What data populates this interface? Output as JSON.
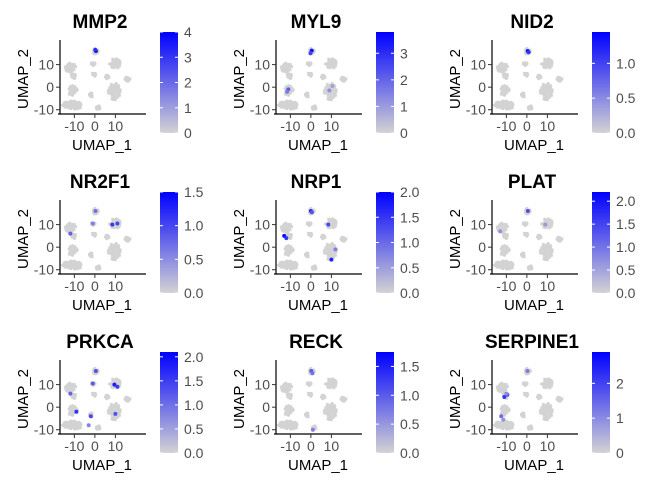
{
  "chart_data": [
    {
      "type": "scatter",
      "title": "MMP2",
      "xlabel": "UMAP_1",
      "ylabel": "UMAP_2",
      "xlim": [
        -17,
        22
      ],
      "ylim": [
        -11,
        20
      ],
      "xticks": [
        -10,
        0,
        10
      ],
      "yticks": [
        -10,
        0,
        10
      ],
      "xtick_labels": [
        "-10",
        "0",
        "10"
      ],
      "ytick_labels": [
        "-10",
        "0",
        "10"
      ],
      "legend": {
        "min": 0,
        "max": 4,
        "ticks": [
          0,
          1,
          2,
          3,
          4
        ],
        "tick_labels": [
          "0",
          "1",
          "2",
          "3",
          "4"
        ]
      },
      "low_color": "#d3d3d3",
      "high_color": "#0000ff",
      "highlights": [
        {
          "x": 0.5,
          "y": 16,
          "value": 3.8
        },
        {
          "x": 0.2,
          "y": 16.5,
          "value": 3.2
        }
      ]
    },
    {
      "type": "scatter",
      "title": "MYL9",
      "xlabel": "UMAP_1",
      "ylabel": "UMAP_2",
      "xlim": [
        -17,
        22
      ],
      "ylim": [
        -11,
        20
      ],
      "xticks": [
        -10,
        0,
        10
      ],
      "yticks": [
        -10,
        0,
        10
      ],
      "xtick_labels": [
        "-10",
        "0",
        "10"
      ],
      "ytick_labels": [
        "-10",
        "0",
        "10"
      ],
      "legend": {
        "min": 0,
        "max": 3.8,
        "ticks": [
          0,
          1,
          2,
          3
        ],
        "tick_labels": [
          "0",
          "1",
          "2",
          "3"
        ]
      },
      "low_color": "#d3d3d3",
      "high_color": "#0000ff",
      "highlights": [
        {
          "x": 0.4,
          "y": 16.2,
          "value": 3.5
        },
        {
          "x": -0.2,
          "y": 15,
          "value": 2.6
        },
        {
          "x": -11,
          "y": -1,
          "value": 2.2
        },
        {
          "x": -11.6,
          "y": -2,
          "value": 1.6
        },
        {
          "x": 9,
          "y": -1.5,
          "value": 1.2
        },
        {
          "x": 10.5,
          "y": 0.5,
          "value": 0.9
        }
      ]
    },
    {
      "type": "scatter",
      "title": "NID2",
      "xlabel": "UMAP_1",
      "ylabel": "UMAP_2",
      "xlim": [
        -17,
        22
      ],
      "ylim": [
        -11,
        20
      ],
      "xticks": [
        -10,
        0,
        10
      ],
      "yticks": [
        -10,
        0,
        10
      ],
      "xtick_labels": [
        "-10",
        "0",
        "10"
      ],
      "ytick_labels": [
        "-10",
        "0",
        "10"
      ],
      "legend": {
        "min": 0,
        "max": 1.45,
        "ticks": [
          0,
          0.5,
          1
        ],
        "tick_labels": [
          "0.0",
          "0.5",
          "1.0"
        ]
      },
      "low_color": "#d3d3d3",
      "high_color": "#0000ff",
      "highlights": [
        {
          "x": 0.4,
          "y": 16,
          "value": 1.3
        },
        {
          "x": 0.9,
          "y": 15.5,
          "value": 1.1
        }
      ]
    },
    {
      "type": "scatter",
      "title": "NR2F1",
      "xlabel": "UMAP_1",
      "ylabel": "UMAP_2",
      "xlim": [
        -17,
        22
      ],
      "ylim": [
        -11,
        20
      ],
      "xticks": [
        -10,
        0,
        10
      ],
      "yticks": [
        -10,
        0,
        10
      ],
      "xtick_labels": [
        "-10",
        "0",
        "10"
      ],
      "ytick_labels": [
        "-10",
        "0",
        "10"
      ],
      "legend": {
        "min": 0,
        "max": 1.5,
        "ticks": [
          0,
          0.5,
          1,
          1.5
        ],
        "tick_labels": [
          "0.0",
          "0.5",
          "1.0",
          "1.5"
        ]
      },
      "low_color": "#d3d3d3",
      "high_color": "#0000ff",
      "highlights": [
        {
          "x": -12,
          "y": 6,
          "value": 0.8
        },
        {
          "x": 0.3,
          "y": 16,
          "value": 0.7
        },
        {
          "x": 8.5,
          "y": 10,
          "value": 1.1
        },
        {
          "x": 11,
          "y": 10.5,
          "value": 1.0
        },
        {
          "x": -1,
          "y": 10.5,
          "value": 0.6
        }
      ]
    },
    {
      "type": "scatter",
      "title": "NRP1",
      "xlabel": "UMAP_1",
      "ylabel": "UMAP_2",
      "xlim": [
        -17,
        22
      ],
      "ylim": [
        -11,
        20
      ],
      "xticks": [
        -10,
        0,
        10
      ],
      "yticks": [
        -10,
        0,
        10
      ],
      "xtick_labels": [
        "-10",
        "0",
        "10"
      ],
      "ytick_labels": [
        "-10",
        "0",
        "10"
      ],
      "legend": {
        "min": 0,
        "max": 2.0,
        "ticks": [
          0,
          0.5,
          1,
          1.5,
          2
        ],
        "tick_labels": [
          "0.0",
          "0.5",
          "1.0",
          "1.5",
          "2.0"
        ]
      },
      "low_color": "#d3d3d3",
      "high_color": "#0000ff",
      "highlights": [
        {
          "x": -13,
          "y": 5,
          "value": 1.9
        },
        {
          "x": -12,
          "y": 4,
          "value": 1.5
        },
        {
          "x": 0,
          "y": 16,
          "value": 1.6
        },
        {
          "x": 0.5,
          "y": 15.5,
          "value": 1.2
        },
        {
          "x": 8.5,
          "y": 10,
          "value": 1.3
        },
        {
          "x": 10,
          "y": -5.5,
          "value": 1.7
        },
        {
          "x": 12,
          "y": -1,
          "value": 0.8
        }
      ]
    },
    {
      "type": "scatter",
      "title": "PLAT",
      "xlabel": "UMAP_1",
      "ylabel": "UMAP_2",
      "xlim": [
        -17,
        22
      ],
      "ylim": [
        -11,
        20
      ],
      "xticks": [
        -10,
        0,
        10
      ],
      "yticks": [
        -10,
        0,
        10
      ],
      "xtick_labels": [
        "-10",
        "0",
        "10"
      ],
      "ytick_labels": [
        "-10",
        "0",
        "10"
      ],
      "legend": {
        "min": 0,
        "max": 2.2,
        "ticks": [
          0,
          0.5,
          1,
          1.5,
          2
        ],
        "tick_labels": [
          "0.0",
          "0.5",
          "1.0",
          "1.5",
          "2.0"
        ]
      },
      "low_color": "#d3d3d3",
      "high_color": "#0000ff",
      "highlights": [
        {
          "x": 0.5,
          "y": 16,
          "value": 1.4
        },
        {
          "x": -13,
          "y": 7,
          "value": 0.7
        },
        {
          "x": 9,
          "y": 10,
          "value": 0.6
        }
      ]
    },
    {
      "type": "scatter",
      "title": "PRKCA",
      "xlabel": "UMAP_1",
      "ylabel": "UMAP_2",
      "xlim": [
        -17,
        22
      ],
      "ylim": [
        -11,
        20
      ],
      "xticks": [
        -10,
        0,
        10
      ],
      "yticks": [
        -10,
        0,
        10
      ],
      "xtick_labels": [
        "-10",
        "0",
        "10"
      ],
      "ytick_labels": [
        "-10",
        "0",
        "10"
      ],
      "legend": {
        "min": 0,
        "max": 2.1,
        "ticks": [
          0,
          0.5,
          1,
          1.5,
          2
        ],
        "tick_labels": [
          "0.0",
          "0.5",
          "1.0",
          "1.5",
          "2.0"
        ]
      },
      "low_color": "#d3d3d3",
      "high_color": "#0000ff",
      "highlights": [
        {
          "x": 9.5,
          "y": 10,
          "value": 1.8
        },
        {
          "x": 11,
          "y": 9,
          "value": 1.5
        },
        {
          "x": -12,
          "y": 6,
          "value": 1.1
        },
        {
          "x": 0.5,
          "y": 16,
          "value": 1.3
        },
        {
          "x": -1,
          "y": 10.5,
          "value": 1.2
        },
        {
          "x": -9,
          "y": -2,
          "value": 1.6
        },
        {
          "x": -2,
          "y": -4,
          "value": 1.4
        },
        {
          "x": 10,
          "y": -3,
          "value": 1.3
        },
        {
          "x": -3,
          "y": -8,
          "value": 0.8
        }
      ]
    },
    {
      "type": "scatter",
      "title": "RECK",
      "xlabel": "UMAP_1",
      "ylabel": "UMAP_2",
      "xlim": [
        -17,
        22
      ],
      "ylim": [
        -11,
        20
      ],
      "xticks": [
        -10,
        0,
        10
      ],
      "yticks": [
        -10,
        0,
        10
      ],
      "xtick_labels": [
        "-10",
        "0",
        "10"
      ],
      "ytick_labels": [
        "-10",
        "0",
        "10"
      ],
      "legend": {
        "min": 0,
        "max": 1.75,
        "ticks": [
          0,
          0.5,
          1,
          1.5
        ],
        "tick_labels": [
          "0.0",
          "0.5",
          "1.0",
          "1.5"
        ]
      },
      "low_color": "#d3d3d3",
      "high_color": "#0000ff",
      "highlights": [
        {
          "x": 0.2,
          "y": 16,
          "value": 1.0
        },
        {
          "x": 0.8,
          "y": 15,
          "value": 0.8
        },
        {
          "x": 1,
          "y": -10,
          "value": 0.7
        }
      ]
    },
    {
      "type": "scatter",
      "title": "SERPINE1",
      "xlabel": "UMAP_1",
      "ylabel": "UMAP_2",
      "xlim": [
        -17,
        22
      ],
      "ylim": [
        -11,
        20
      ],
      "xticks": [
        -10,
        0,
        10
      ],
      "yticks": [
        -10,
        0,
        10
      ],
      "xtick_labels": [
        "-10",
        "0",
        "10"
      ],
      "ytick_labels": [
        "-10",
        "0",
        "10"
      ],
      "legend": {
        "min": 0,
        "max": 2.9,
        "ticks": [
          0,
          1,
          2
        ],
        "tick_labels": [
          "0",
          "1",
          "2"
        ]
      },
      "low_color": "#d3d3d3",
      "high_color": "#0000ff",
      "highlights": [
        {
          "x": -11,
          "y": 4.5,
          "value": 2.2
        },
        {
          "x": -9.5,
          "y": 5.5,
          "value": 1.8
        },
        {
          "x": 0.3,
          "y": 16,
          "value": 1.2
        },
        {
          "x": -12.5,
          "y": -4,
          "value": 1.4
        },
        {
          "x": -11.5,
          "y": -5.5,
          "value": 0.9
        },
        {
          "x": -10,
          "y": 6,
          "value": 1.0
        }
      ]
    }
  ],
  "clusters": [
    {
      "x": -11.8,
      "y": 8.5,
      "rx": 2.6,
      "ry": 2.3
    },
    {
      "x": -10.5,
      "y": 5,
      "rx": 1.3,
      "ry": 1.3
    },
    {
      "x": 0.4,
      "y": 15.8,
      "rx": 1.2,
      "ry": 1.5
    },
    {
      "x": -0.8,
      "y": 10.5,
      "rx": 0.9,
      "ry": 0.9
    },
    {
      "x": 9.8,
      "y": 10.5,
      "rx": 2.6,
      "ry": 2.2
    },
    {
      "x": -0.5,
      "y": 5.5,
      "rx": 1.0,
      "ry": 0.8
    },
    {
      "x": 6,
      "y": 4.5,
      "rx": 1.0,
      "ry": 0.8
    },
    {
      "x": 15.8,
      "y": 3.5,
      "rx": 1.3,
      "ry": 1.0
    },
    {
      "x": -10.8,
      "y": -1.5,
      "rx": 2.3,
      "ry": 2.3
    },
    {
      "x": -2,
      "y": -3.5,
      "rx": 1.0,
      "ry": 1.0
    },
    {
      "x": 9.5,
      "y": -2,
      "rx": 3.0,
      "ry": 3.8
    },
    {
      "x": -11,
      "y": -8,
      "rx": 5.0,
      "ry": 1.8
    },
    {
      "x": 1.5,
      "y": -9,
      "rx": 1.1,
      "ry": 0.8
    }
  ]
}
